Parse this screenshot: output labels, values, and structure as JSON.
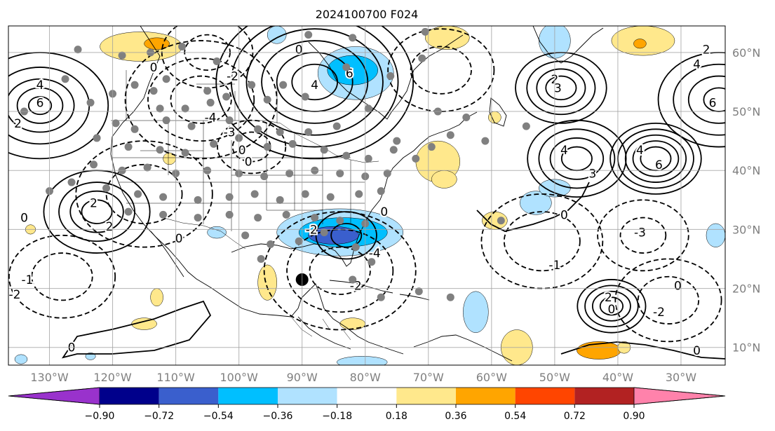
{
  "chart_data": {
    "type": "heatmap",
    "title": "2024100700 F024",
    "map": {
      "lon_range": [
        -136.5,
        -23.0
      ],
      "lat_range": [
        7.0,
        64.5
      ],
      "lon_ticks": [
        {
          "value": -130,
          "label": "130°W"
        },
        {
          "value": -120,
          "label": "120°W"
        },
        {
          "value": -110,
          "label": "110°W"
        },
        {
          "value": -100,
          "label": "100°W"
        },
        {
          "value": -90,
          "label": "90°W"
        },
        {
          "value": -80,
          "label": "80°W"
        },
        {
          "value": -70,
          "label": "70°W"
        },
        {
          "value": -60,
          "label": "60°W"
        },
        {
          "value": -50,
          "label": "50°W"
        },
        {
          "value": -40,
          "label": "40°W"
        },
        {
          "value": -30,
          "label": "30°W"
        }
      ],
      "lat_ticks": [
        {
          "value": 60,
          "label": "60°N"
        },
        {
          "value": 50,
          "label": "50°N"
        },
        {
          "value": 40,
          "label": "40°N"
        },
        {
          "value": 30,
          "label": "30°N"
        },
        {
          "value": 20,
          "label": "20°N"
        },
        {
          "value": 10,
          "label": "10°N"
        }
      ],
      "grid": true
    },
    "colorbar": {
      "levels": [
        "-0.90",
        "-0.72",
        "-0.54",
        "-0.36",
        "-0.18",
        "0.18",
        "0.36",
        "0.54",
        "0.72",
        "0.90"
      ],
      "colors": [
        "#9932cc",
        "#00008b",
        "#3a5fcd",
        "#00bfff",
        "#b0e2ff",
        "#ffffff",
        "#ffe88c",
        "#ffa500",
        "#ff4500",
        "#b22222",
        "#ff82ab"
      ],
      "extend": "both"
    },
    "contours": {
      "positive_style": "solid",
      "negative_style": "dashed",
      "labels": [
        {
          "lon": -131.5,
          "lat": 51.5,
          "text": "6"
        },
        {
          "lon": -131.5,
          "lat": 54.5,
          "text": "4"
        },
        {
          "lon": -135.0,
          "lat": 48.0,
          "text": "2"
        },
        {
          "lon": -134.0,
          "lat": 32.0,
          "text": "0"
        },
        {
          "lon": -123.0,
          "lat": 34.5,
          "text": "2"
        },
        {
          "lon": -120.5,
          "lat": 30.5,
          "text": "2"
        },
        {
          "lon": -113.5,
          "lat": 57.5,
          "text": "0"
        },
        {
          "lon": -101.0,
          "lat": 56.0,
          "text": "-2"
        },
        {
          "lon": -104.5,
          "lat": 49.0,
          "text": "-4"
        },
        {
          "lon": -101.5,
          "lat": 46.5,
          "text": "-3"
        },
        {
          "lon": -99.5,
          "lat": 43.5,
          "text": "0"
        },
        {
          "lon": -98.5,
          "lat": 41.5,
          "text": "0"
        },
        {
          "lon": -88.0,
          "lat": 54.5,
          "text": "4"
        },
        {
          "lon": -82.5,
          "lat": 56.5,
          "text": "6"
        },
        {
          "lon": -90.5,
          "lat": 60.5,
          "text": "0"
        },
        {
          "lon": -50.0,
          "lat": 55.5,
          "text": "2"
        },
        {
          "lon": -49.5,
          "lat": 54.0,
          "text": "3"
        },
        {
          "lon": -48.5,
          "lat": 43.5,
          "text": "4"
        },
        {
          "lon": -44.0,
          "lat": 39.5,
          "text": "3"
        },
        {
          "lon": -36.5,
          "lat": 43.5,
          "text": "4"
        },
        {
          "lon": -33.5,
          "lat": 41.0,
          "text": "6"
        },
        {
          "lon": -27.5,
          "lat": 58.0,
          "text": "4"
        },
        {
          "lon": -25.0,
          "lat": 51.5,
          "text": "6"
        },
        {
          "lon": -26.0,
          "lat": 60.5,
          "text": "2"
        },
        {
          "lon": -48.5,
          "lat": 32.5,
          "text": "0"
        },
        {
          "lon": -36.5,
          "lat": 29.5,
          "text": "-3"
        },
        {
          "lon": -50.0,
          "lat": 24.0,
          "text": "-1"
        },
        {
          "lon": -41.5,
          "lat": 18.5,
          "text": "2"
        },
        {
          "lon": -41.0,
          "lat": 16.5,
          "text": "0"
        },
        {
          "lon": -33.5,
          "lat": 16.0,
          "text": "-2"
        },
        {
          "lon": -30.5,
          "lat": 20.5,
          "text": "0"
        },
        {
          "lon": -27.5,
          "lat": 9.5,
          "text": "0"
        },
        {
          "lon": -133.5,
          "lat": 21.5,
          "text": "-1"
        },
        {
          "lon": -135.5,
          "lat": 19.0,
          "text": "-2"
        },
        {
          "lon": -77.0,
          "lat": 33.0,
          "text": "0"
        },
        {
          "lon": -81.5,
          "lat": 20.5,
          "text": "-2"
        },
        {
          "lon": -88.5,
          "lat": 30.0,
          "text": "-2"
        },
        {
          "lon": -109.5,
          "lat": 28.5,
          "text": "0"
        },
        {
          "lon": -126.5,
          "lat": 10.0,
          "text": "0"
        },
        {
          "lon": -78.5,
          "lat": 26.0,
          "text": "-4"
        }
      ]
    },
    "markers": {
      "storm": {
        "lon": -90.0,
        "lat": 21.5,
        "color": "#000000"
      },
      "stations": [
        {
          "lon": -127.5,
          "lat": 55.5
        },
        {
          "lon": -123.5,
          "lat": 51.5
        },
        {
          "lon": -120.0,
          "lat": 53.0
        },
        {
          "lon": -116.5,
          "lat": 54.5
        },
        {
          "lon": -113.5,
          "lat": 53.5
        },
        {
          "lon": -111.5,
          "lat": 55.5
        },
        {
          "lon": -105.0,
          "lat": 53.5
        },
        {
          "lon": -102.0,
          "lat": 52.5
        },
        {
          "lon": -98.0,
          "lat": 54.5
        },
        {
          "lon": -95.5,
          "lat": 52.0
        },
        {
          "lon": -93.0,
          "lat": 54.5
        },
        {
          "lon": -89.5,
          "lat": 52.5
        },
        {
          "lon": -112.5,
          "lat": 50.5
        },
        {
          "lon": -108.5,
          "lat": 50.5
        },
        {
          "lon": -104.5,
          "lat": 51.5
        },
        {
          "lon": -119.5,
          "lat": 48.0
        },
        {
          "lon": -116.5,
          "lat": 47.0
        },
        {
          "lon": -111.5,
          "lat": 48.5
        },
        {
          "lon": -107.5,
          "lat": 47.5
        },
        {
          "lon": -101.5,
          "lat": 48.5
        },
        {
          "lon": -97.0,
          "lat": 47.0
        },
        {
          "lon": -93.5,
          "lat": 46.5
        },
        {
          "lon": -89.0,
          "lat": 46.5
        },
        {
          "lon": -84.5,
          "lat": 47.5
        },
        {
          "lon": -122.5,
          "lat": 45.5
        },
        {
          "lon": -117.5,
          "lat": 44.0
        },
        {
          "lon": -112.5,
          "lat": 43.5
        },
        {
          "lon": -108.5,
          "lat": 43.0
        },
        {
          "lon": -104.0,
          "lat": 44.5
        },
        {
          "lon": -100.0,
          "lat": 45.5
        },
        {
          "lon": -95.5,
          "lat": 44.0
        },
        {
          "lon": -91.5,
          "lat": 44.5
        },
        {
          "lon": -86.5,
          "lat": 43.5
        },
        {
          "lon": -83.0,
          "lat": 42.5
        },
        {
          "lon": -79.5,
          "lat": 42.0
        },
        {
          "lon": -75.5,
          "lat": 43.5
        },
        {
          "lon": -72.0,
          "lat": 42.0
        },
        {
          "lon": -69.5,
          "lat": 44.0
        },
        {
          "lon": -66.5,
          "lat": 46.0
        },
        {
          "lon": -123.0,
          "lat": 41.0
        },
        {
          "lon": -118.5,
          "lat": 40.0
        },
        {
          "lon": -114.5,
          "lat": 40.5
        },
        {
          "lon": -110.0,
          "lat": 39.5
        },
        {
          "lon": -105.0,
          "lat": 40.0
        },
        {
          "lon": -100.0,
          "lat": 39.5
        },
        {
          "lon": -96.0,
          "lat": 39.0
        },
        {
          "lon": -92.0,
          "lat": 39.5
        },
        {
          "lon": -88.0,
          "lat": 40.0
        },
        {
          "lon": -84.0,
          "lat": 39.5
        },
        {
          "lon": -80.0,
          "lat": 39.0
        },
        {
          "lon": -76.5,
          "lat": 39.5
        },
        {
          "lon": -121.0,
          "lat": 37.0
        },
        {
          "lon": -116.0,
          "lat": 36.0
        },
        {
          "lon": -112.0,
          "lat": 35.5
        },
        {
          "lon": -106.5,
          "lat": 35.0
        },
        {
          "lon": -101.5,
          "lat": 35.5
        },
        {
          "lon": -97.5,
          "lat": 36.0
        },
        {
          "lon": -93.5,
          "lat": 35.0
        },
        {
          "lon": -89.5,
          "lat": 36.0
        },
        {
          "lon": -85.5,
          "lat": 35.5
        },
        {
          "lon": -81.0,
          "lat": 36.0
        },
        {
          "lon": -77.5,
          "lat": 36.5
        },
        {
          "lon": -117.5,
          "lat": 33.0
        },
        {
          "lon": -112.0,
          "lat": 32.5
        },
        {
          "lon": -106.5,
          "lat": 32.0
        },
        {
          "lon": -101.5,
          "lat": 32.5
        },
        {
          "lon": -97.0,
          "lat": 32.0
        },
        {
          "lon": -92.5,
          "lat": 32.5
        },
        {
          "lon": -88.0,
          "lat": 32.0
        },
        {
          "lon": -84.0,
          "lat": 31.5
        },
        {
          "lon": -80.0,
          "lat": 31.0
        },
        {
          "lon": -99.0,
          "lat": 29.0
        },
        {
          "lon": -95.0,
          "lat": 27.5
        },
        {
          "lon": -90.5,
          "lat": 28.0
        },
        {
          "lon": -86.5,
          "lat": 29.5
        },
        {
          "lon": -81.5,
          "lat": 27.0
        },
        {
          "lon": -79.0,
          "lat": 24.5
        },
        {
          "lon": -96.5,
          "lat": 25.0
        },
        {
          "lon": -82.0,
          "lat": 21.5
        },
        {
          "lon": -77.5,
          "lat": 18.5
        },
        {
          "lon": -71.5,
          "lat": 19.5
        },
        {
          "lon": -66.5,
          "lat": 18.5
        },
        {
          "lon": -58.5,
          "lat": 31.5
        },
        {
          "lon": -54.5,
          "lat": 47.5
        },
        {
          "lon": -61.0,
          "lat": 45.0
        },
        {
          "lon": -64.0,
          "lat": 49.0
        },
        {
          "lon": -68.5,
          "lat": 50.0
        },
        {
          "lon": -75.0,
          "lat": 45.0
        },
        {
          "lon": -79.5,
          "lat": 50.5
        },
        {
          "lon": -76.0,
          "lat": 56.0
        },
        {
          "lon": -83.0,
          "lat": 57.5
        },
        {
          "lon": -82.0,
          "lat": 62.5
        },
        {
          "lon": -89.0,
          "lat": 63.0
        },
        {
          "lon": -70.5,
          "lat": 63.5
        },
        {
          "lon": -71.0,
          "lat": 59.0
        },
        {
          "lon": -130.0,
          "lat": 36.5
        },
        {
          "lon": -126.5,
          "lat": 38.0
        },
        {
          "lon": -134.0,
          "lat": 50.0
        },
        {
          "lon": -103.5,
          "lat": 58.5
        },
        {
          "lon": -109.0,
          "lat": 61.0
        },
        {
          "lon": -114.0,
          "lat": 60.0
        },
        {
          "lon": -118.5,
          "lat": 59.5
        },
        {
          "lon": -125.5,
          "lat": 60.5
        }
      ]
    },
    "anomaly_patches": [
      {
        "lon": -115.5,
        "lat": 61.0,
        "rlon": 6.5,
        "rlat": 2.5,
        "level": 1
      },
      {
        "lon": -113.0,
        "lat": 61.5,
        "rlon": 2.0,
        "rlat": 1.0,
        "level": 2
      },
      {
        "lon": -94.0,
        "lat": 63.0,
        "rlon": 1.5,
        "rlat": 1.5,
        "level": -1
      },
      {
        "lon": -81.5,
        "lat": 56.5,
        "rlon": 6.0,
        "rlat": 4.5,
        "level": -1
      },
      {
        "lon": -82.0,
        "lat": 57.0,
        "rlon": 4.0,
        "rlat": 2.5,
        "level": -2
      },
      {
        "lon": -50.0,
        "lat": 62.0,
        "rlon": 2.5,
        "rlat": 3.0,
        "level": -1
      },
      {
        "lon": -67.0,
        "lat": 62.5,
        "rlon": 3.5,
        "rlat": 2.0,
        "level": 1
      },
      {
        "lon": -36.0,
        "lat": 62.0,
        "rlon": 5.0,
        "rlat": 2.5,
        "level": 1
      },
      {
        "lon": -36.5,
        "lat": 61.5,
        "rlon": 1.0,
        "rlat": 0.8,
        "level": 2
      },
      {
        "lon": -68.5,
        "lat": 41.5,
        "rlon": 3.5,
        "rlat": 3.5,
        "level": 1
      },
      {
        "lon": -67.5,
        "lat": 38.5,
        "rlon": 2.0,
        "rlat": 1.5,
        "level": 1
      },
      {
        "lon": -53.0,
        "lat": 34.5,
        "rlon": 2.5,
        "rlat": 2.0,
        "level": -1
      },
      {
        "lon": -59.5,
        "lat": 31.5,
        "rlon": 2.0,
        "rlat": 1.5,
        "level": 1
      },
      {
        "lon": -84.0,
        "lat": 29.5,
        "rlon": 10.0,
        "rlat": 4.0,
        "level": -1
      },
      {
        "lon": -83.5,
        "lat": 29.5,
        "rlon": 7.0,
        "rlat": 2.5,
        "level": -2
      },
      {
        "lon": -85.0,
        "lat": 29.0,
        "rlon": 4.0,
        "rlat": 1.5,
        "level": -3
      },
      {
        "lon": -103.5,
        "lat": 29.5,
        "rlon": 1.5,
        "rlat": 1.0,
        "level": -1
      },
      {
        "lon": -95.5,
        "lat": 21.0,
        "rlon": 1.5,
        "rlat": 3.0,
        "level": 1
      },
      {
        "lon": -62.5,
        "lat": 16.0,
        "rlon": 2.0,
        "rlat": 3.5,
        "level": -1
      },
      {
        "lon": -56.0,
        "lat": 10.0,
        "rlon": 2.5,
        "rlat": 3.0,
        "level": 1
      },
      {
        "lon": -43.0,
        "lat": 9.5,
        "rlon": 3.5,
        "rlat": 1.5,
        "level": 2
      },
      {
        "lon": -39.0,
        "lat": 10.0,
        "rlon": 1.0,
        "rlat": 1.0,
        "level": 1
      },
      {
        "lon": -80.5,
        "lat": 7.5,
        "rlon": 4.0,
        "rlat": 1.0,
        "level": -1
      },
      {
        "lon": -113.0,
        "lat": 18.5,
        "rlon": 1.0,
        "rlat": 1.5,
        "level": 1
      },
      {
        "lon": -115.0,
        "lat": 14.0,
        "rlon": 2.0,
        "rlat": 1.0,
        "level": 1
      },
      {
        "lon": -134.5,
        "lat": 8.0,
        "rlon": 1.0,
        "rlat": 0.8,
        "level": -1
      },
      {
        "lon": -123.5,
        "lat": 8.5,
        "rlon": 0.8,
        "rlat": 0.6,
        "level": -1
      },
      {
        "lon": -133.0,
        "lat": 30.0,
        "rlon": 0.8,
        "rlat": 0.8,
        "level": 1
      },
      {
        "lon": -111.0,
        "lat": 42.0,
        "rlon": 1.0,
        "rlat": 1.0,
        "level": 1
      },
      {
        "lon": -24.5,
        "lat": 29.0,
        "rlon": 1.5,
        "rlat": 2.0,
        "level": -1
      },
      {
        "lon": -50.0,
        "lat": 37.0,
        "rlon": 2.5,
        "rlat": 1.5,
        "level": -1
      },
      {
        "lon": -59.5,
        "lat": 49.0,
        "rlon": 1.0,
        "rlat": 1.0,
        "level": 1
      },
      {
        "lon": -82.0,
        "lat": 14.0,
        "rlon": 2.0,
        "rlat": 1.0,
        "level": 1
      }
    ]
  }
}
